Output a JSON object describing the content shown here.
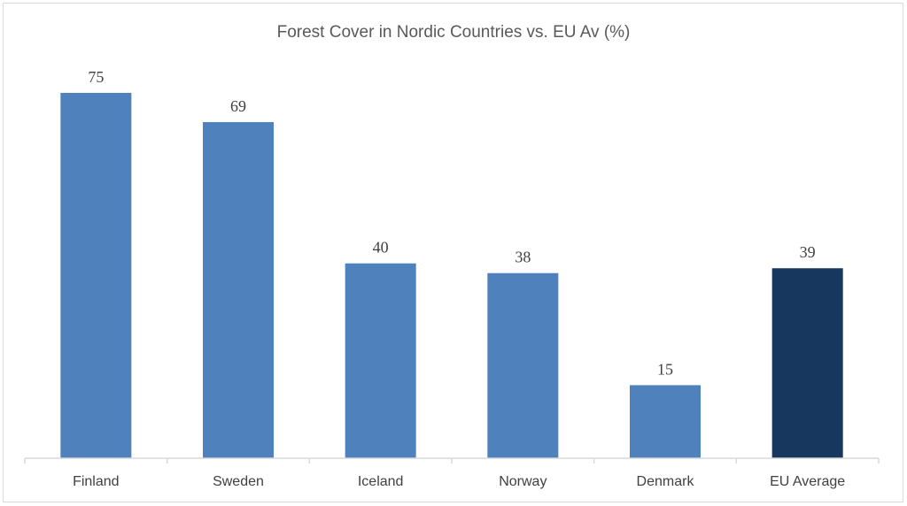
{
  "chart_data": {
    "type": "bar",
    "title": "Forest Cover in Nordic Countries vs. EU Av (%)",
    "categories": [
      "Finland",
      "Sweden",
      "Iceland",
      "Norway",
      "Denmark",
      "EU Average"
    ],
    "values": [
      75,
      69,
      40,
      38,
      15,
      39
    ],
    "data_labels": [
      "75",
      "69",
      "40",
      "38",
      "15",
      "39"
    ],
    "ylim": [
      0,
      75
    ],
    "grid": false,
    "colors": {
      "default": "#4F81BD",
      "highlight": "#17375E"
    },
    "highlight_index": 5
  }
}
